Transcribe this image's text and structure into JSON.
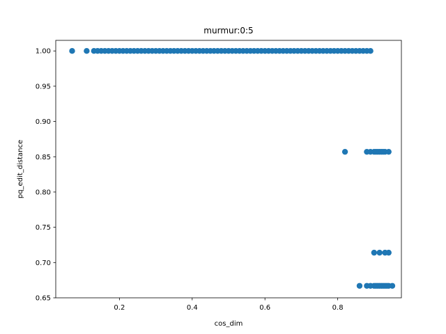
{
  "chart_data": {
    "type": "scatter",
    "title": "murmur:0:5",
    "xlabel": "cos_dim",
    "ylabel": "pq_edit_distance",
    "xlim": [
      0.025,
      0.975
    ],
    "ylim": [
      0.65,
      1.015
    ],
    "grid": false,
    "marker_color": "#1f77b4",
    "x_ticks": [
      0.2,
      0.4,
      0.6,
      0.8
    ],
    "x_tick_labels": [
      "0.2",
      "0.4",
      "0.6",
      "0.8"
    ],
    "y_ticks": [
      0.65,
      0.7,
      0.75,
      0.8,
      0.85,
      0.9,
      0.95,
      1.0
    ],
    "y_tick_labels": [
      "0.65",
      "0.70",
      "0.75",
      "0.80",
      "0.85",
      "0.90",
      "0.95",
      "1.00"
    ],
    "series": [
      {
        "points": [
          [
            0.07,
            1.0
          ],
          [
            0.11,
            1.0
          ],
          [
            0.13,
            1.0
          ],
          [
            0.14,
            1.0
          ],
          [
            0.15,
            1.0
          ],
          [
            0.16,
            1.0
          ],
          [
            0.17,
            1.0
          ],
          [
            0.18,
            1.0
          ],
          [
            0.19,
            1.0
          ],
          [
            0.2,
            1.0
          ],
          [
            0.21,
            1.0
          ],
          [
            0.22,
            1.0
          ],
          [
            0.23,
            1.0
          ],
          [
            0.24,
            1.0
          ],
          [
            0.25,
            1.0
          ],
          [
            0.26,
            1.0
          ],
          [
            0.27,
            1.0
          ],
          [
            0.28,
            1.0
          ],
          [
            0.29,
            1.0
          ],
          [
            0.3,
            1.0
          ],
          [
            0.31,
            1.0
          ],
          [
            0.32,
            1.0
          ],
          [
            0.33,
            1.0
          ],
          [
            0.34,
            1.0
          ],
          [
            0.35,
            1.0
          ],
          [
            0.36,
            1.0
          ],
          [
            0.37,
            1.0
          ],
          [
            0.38,
            1.0
          ],
          [
            0.39,
            1.0
          ],
          [
            0.4,
            1.0
          ],
          [
            0.41,
            1.0
          ],
          [
            0.42,
            1.0
          ],
          [
            0.43,
            1.0
          ],
          [
            0.44,
            1.0
          ],
          [
            0.45,
            1.0
          ],
          [
            0.46,
            1.0
          ],
          [
            0.47,
            1.0
          ],
          [
            0.48,
            1.0
          ],
          [
            0.49,
            1.0
          ],
          [
            0.5,
            1.0
          ],
          [
            0.51,
            1.0
          ],
          [
            0.52,
            1.0
          ],
          [
            0.53,
            1.0
          ],
          [
            0.54,
            1.0
          ],
          [
            0.55,
            1.0
          ],
          [
            0.56,
            1.0
          ],
          [
            0.57,
            1.0
          ],
          [
            0.58,
            1.0
          ],
          [
            0.59,
            1.0
          ],
          [
            0.6,
            1.0
          ],
          [
            0.61,
            1.0
          ],
          [
            0.62,
            1.0
          ],
          [
            0.63,
            1.0
          ],
          [
            0.64,
            1.0
          ],
          [
            0.65,
            1.0
          ],
          [
            0.66,
            1.0
          ],
          [
            0.67,
            1.0
          ],
          [
            0.68,
            1.0
          ],
          [
            0.69,
            1.0
          ],
          [
            0.7,
            1.0
          ],
          [
            0.71,
            1.0
          ],
          [
            0.72,
            1.0
          ],
          [
            0.73,
            1.0
          ],
          [
            0.74,
            1.0
          ],
          [
            0.75,
            1.0
          ],
          [
            0.76,
            1.0
          ],
          [
            0.77,
            1.0
          ],
          [
            0.78,
            1.0
          ],
          [
            0.79,
            1.0
          ],
          [
            0.8,
            1.0
          ],
          [
            0.81,
            1.0
          ],
          [
            0.82,
            1.0
          ],
          [
            0.83,
            1.0
          ],
          [
            0.84,
            1.0
          ],
          [
            0.85,
            1.0
          ],
          [
            0.86,
            1.0
          ],
          [
            0.87,
            1.0
          ],
          [
            0.88,
            1.0
          ],
          [
            0.89,
            1.0
          ],
          [
            0.82,
            0.857
          ],
          [
            0.88,
            0.857
          ],
          [
            0.89,
            0.857
          ],
          [
            0.9,
            0.857
          ],
          [
            0.905,
            0.857
          ],
          [
            0.91,
            0.857
          ],
          [
            0.915,
            0.857
          ],
          [
            0.92,
            0.857
          ],
          [
            0.925,
            0.857
          ],
          [
            0.93,
            0.857
          ],
          [
            0.94,
            0.857
          ],
          [
            0.9,
            0.714
          ],
          [
            0.915,
            0.714
          ],
          [
            0.93,
            0.714
          ],
          [
            0.94,
            0.714
          ],
          [
            0.86,
            0.667
          ],
          [
            0.88,
            0.667
          ],
          [
            0.89,
            0.667
          ],
          [
            0.9,
            0.667
          ],
          [
            0.905,
            0.667
          ],
          [
            0.91,
            0.667
          ],
          [
            0.915,
            0.667
          ],
          [
            0.92,
            0.667
          ],
          [
            0.925,
            0.667
          ],
          [
            0.93,
            0.667
          ],
          [
            0.935,
            0.667
          ],
          [
            0.94,
            0.667
          ],
          [
            0.95,
            0.667
          ]
        ]
      }
    ]
  }
}
